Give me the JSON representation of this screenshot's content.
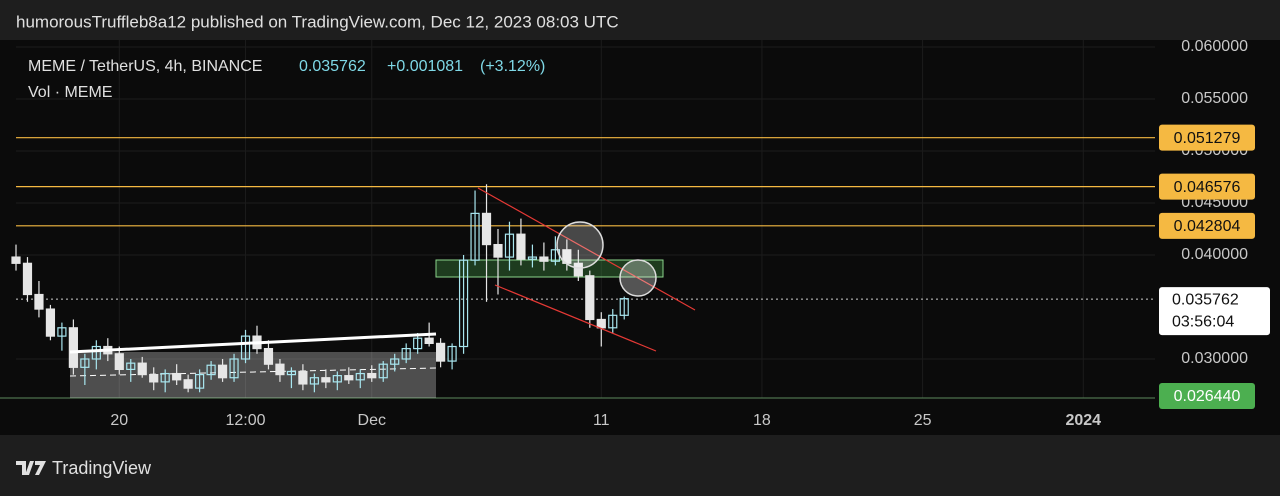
{
  "chart_data": {
    "type": "candlestick",
    "published": "humorousTruffleb8a12 published on TradingView.com, Dec 12, 2023 08:03 UTC",
    "symbol": "MEME / TetherUS, 4h, BINANCE",
    "quote": {
      "price": 0.035762,
      "change": {
        "value": 0.001081,
        "label": "+0.001081"
      },
      "change_pct": {
        "value": 3.12,
        "label": "(+3.12%)"
      }
    },
    "volume_label": "Vol · MEME",
    "countdown": "03:56:04",
    "brand": "TradingView",
    "up_color": "#a8e6ef",
    "down_color": "#e6e6e6",
    "x": [
      "2023-11-15T12:00",
      "2023-11-16T00:00",
      "2023-11-16T12:00",
      "2023-11-17T00:00",
      "2023-11-17T12:00",
      "2023-11-18T00:00",
      "2023-11-18T12:00",
      "2023-11-19T00:00",
      "2023-11-19T12:00",
      "2023-11-20T00:00",
      "2023-11-20T12:00",
      "2023-11-21T00:00",
      "2023-11-21T12:00",
      "2023-11-22T00:00",
      "2023-11-22T12:00",
      "2023-11-23T00:00",
      "2023-11-23T12:00",
      "2023-11-24T00:00",
      "2023-11-24T12:00",
      "2023-11-25T00:00",
      "2023-11-25T12:00",
      "2023-11-26T00:00",
      "2023-11-26T12:00",
      "2023-11-27T00:00",
      "2023-11-27T12:00",
      "2023-11-28T00:00",
      "2023-11-28T12:00",
      "2023-11-29T00:00",
      "2023-11-29T12:00",
      "2023-11-30T00:00",
      "2023-11-30T12:00",
      "2023-12-01T00:00",
      "2023-12-01T12:00",
      "2023-12-02T00:00",
      "2023-12-02T12:00",
      "2023-12-03T00:00",
      "2023-12-03T12:00",
      "2023-12-04T00:00",
      "2023-12-04T12:00",
      "2023-12-05T00:00",
      "2023-12-05T12:00",
      "2023-12-06T00:00",
      "2023-12-06T12:00",
      "2023-12-07T00:00",
      "2023-12-07T12:00",
      "2023-12-08T00:00",
      "2023-12-08T12:00",
      "2023-12-09T00:00",
      "2023-12-09T12:00",
      "2023-12-10T00:00",
      "2023-12-10T12:00",
      "2023-12-11T00:00",
      "2023-12-11T12:00",
      "2023-12-12T00:00"
    ],
    "open": [
      0.0398,
      0.0392,
      0.0362,
      0.0348,
      0.0322,
      0.033,
      0.0292,
      0.03,
      0.0312,
      0.0305,
      0.029,
      0.0296,
      0.0285,
      0.0278,
      0.0286,
      0.028,
      0.0272,
      0.0285,
      0.0294,
      0.0282,
      0.03,
      0.0322,
      0.031,
      0.0295,
      0.0285,
      0.0288,
      0.0276,
      0.0282,
      0.0278,
      0.0284,
      0.028,
      0.0286,
      0.0282,
      0.0295,
      0.03,
      0.031,
      0.032,
      0.0315,
      0.0298,
      0.0312,
      0.0395,
      0.044,
      0.041,
      0.0398,
      0.042,
      0.0396,
      0.0398,
      0.0394,
      0.0405,
      0.0392,
      0.038,
      0.0338,
      0.033,
      0.0342
    ],
    "high": [
      0.041,
      0.0398,
      0.0375,
      0.0352,
      0.0335,
      0.0338,
      0.0305,
      0.0318,
      0.032,
      0.0312,
      0.03,
      0.0302,
      0.0292,
      0.029,
      0.0295,
      0.0285,
      0.029,
      0.0298,
      0.03,
      0.0305,
      0.0328,
      0.0332,
      0.0318,
      0.03,
      0.0292,
      0.0295,
      0.0286,
      0.029,
      0.0288,
      0.0292,
      0.029,
      0.0294,
      0.0298,
      0.0305,
      0.0315,
      0.0325,
      0.0335,
      0.032,
      0.0315,
      0.04,
      0.0462,
      0.0468,
      0.0425,
      0.0432,
      0.0435,
      0.041,
      0.0412,
      0.0418,
      0.0415,
      0.0405,
      0.0385,
      0.0345,
      0.0348,
      0.036
    ],
    "low": [
      0.0385,
      0.0355,
      0.034,
      0.0318,
      0.0308,
      0.0285,
      0.0275,
      0.029,
      0.0298,
      0.0285,
      0.0278,
      0.0282,
      0.027,
      0.0268,
      0.0275,
      0.0268,
      0.0268,
      0.028,
      0.0278,
      0.0278,
      0.0296,
      0.0305,
      0.029,
      0.0278,
      0.0272,
      0.027,
      0.0268,
      0.0272,
      0.027,
      0.0276,
      0.0272,
      0.0278,
      0.0278,
      0.0288,
      0.0296,
      0.0305,
      0.0312,
      0.0292,
      0.029,
      0.0305,
      0.039,
      0.0355,
      0.0362,
      0.0385,
      0.039,
      0.0388,
      0.0385,
      0.039,
      0.0385,
      0.0375,
      0.033,
      0.0312,
      0.0325,
      0.0338
    ],
    "close": [
      0.0392,
      0.0362,
      0.0348,
      0.0322,
      0.033,
      0.0292,
      0.03,
      0.0312,
      0.0305,
      0.029,
      0.0296,
      0.0285,
      0.0278,
      0.0286,
      0.028,
      0.0272,
      0.0285,
      0.0294,
      0.0282,
      0.03,
      0.0322,
      0.031,
      0.0295,
      0.0285,
      0.0288,
      0.0276,
      0.0282,
      0.0278,
      0.0284,
      0.028,
      0.0286,
      0.0282,
      0.0295,
      0.03,
      0.031,
      0.032,
      0.0315,
      0.0298,
      0.0312,
      0.0395,
      0.044,
      0.041,
      0.0398,
      0.042,
      0.0396,
      0.0398,
      0.0394,
      0.0405,
      0.0392,
      0.038,
      0.0338,
      0.033,
      0.0342,
      0.0358
    ],
    "xlim": [
      "2023-11-15T12:00",
      "2024-01-04T03:00"
    ],
    "xticks": [
      {
        "value": "2023-11-20T00:00",
        "label": "20"
      },
      {
        "value": "2023-11-25T12:00",
        "label": "12:00"
      },
      {
        "value": "2023-12-01T00:00",
        "label": "Dec"
      },
      {
        "value": "2023-12-11T00:00",
        "label": "11"
      },
      {
        "value": "2023-12-18T00:00",
        "label": "18"
      },
      {
        "value": "2023-12-25T00:00",
        "label": "25"
      },
      {
        "value": "2024-01-01T00:00",
        "label": "2024"
      }
    ],
    "ylim": [
      0.02625,
      0.06067
    ],
    "yticks": [
      {
        "value": 0.03,
        "label": "0.030000"
      },
      {
        "value": 0.04,
        "label": "0.040000"
      },
      {
        "value": 0.045,
        "label": "0.045000"
      },
      {
        "value": 0.05,
        "label": "0.050000"
      },
      {
        "value": 0.055,
        "label": "0.055000"
      },
      {
        "value": 0.06,
        "label": "0.060000"
      }
    ],
    "levels": [
      {
        "value": 0.051279,
        "color": "#f5b942"
      },
      {
        "value": 0.046576,
        "color": "#f5b942"
      },
      {
        "value": 0.042804,
        "color": "#f5b942"
      },
      {
        "value": 0.02644,
        "label": "0.026440",
        "color": "#4caf50"
      }
    ]
  }
}
